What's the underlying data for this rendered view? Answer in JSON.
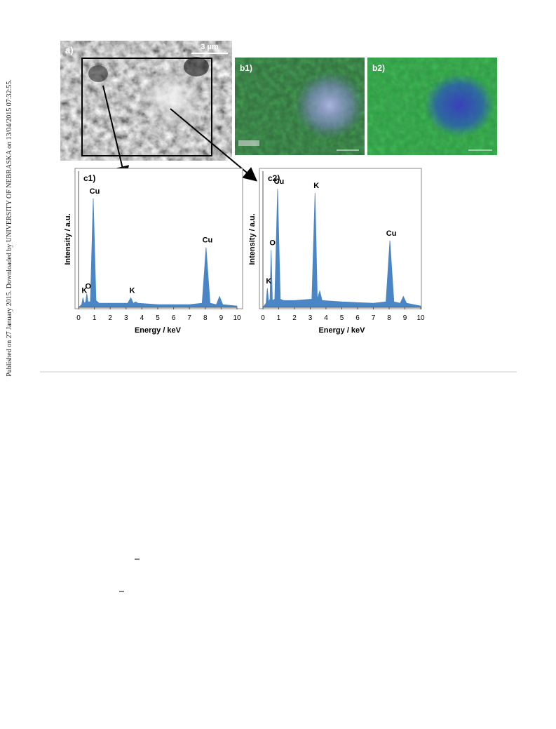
{
  "side_note": "Published on 27 January 2015. Downloaded by UNIVERSITY OF NEBRASKA on 13/04/2015 07:32:55.",
  "figure": {
    "panels": {
      "a": {
        "label": "a)",
        "scale_bar": "3 µm"
      },
      "b1": {
        "label": "b1)"
      },
      "b2": {
        "label": "b2)"
      }
    }
  },
  "chart_data": [
    {
      "type": "area",
      "title": "c1)",
      "x_label": "Energy / keV",
      "y_label": "Intensity / a.u.",
      "color": "#4a86c5",
      "x": [
        0,
        0.2,
        0.28,
        0.36,
        0.45,
        0.52,
        0.6,
        0.75,
        0.93,
        1.1,
        1.3,
        2.0,
        3.1,
        3.3,
        3.45,
        3.6,
        3.75,
        5.0,
        7.0,
        7.8,
        8.05,
        8.3,
        8.7,
        8.9,
        9.1,
        10
      ],
      "values": [
        0,
        2,
        7,
        3,
        4,
        10,
        4,
        4,
        80,
        5,
        3,
        3,
        3,
        7,
        3,
        4,
        3,
        2,
        2,
        3,
        44,
        3,
        2,
        8,
        2,
        1
      ],
      "xlim": [
        0,
        10
      ],
      "xticks": [
        0,
        1,
        2,
        3,
        4,
        5,
        6,
        7,
        8,
        9,
        10
      ],
      "ylim": [
        0,
        100
      ],
      "annotations": [
        {
          "text": "K",
          "x": 0.28
        },
        {
          "text": "O",
          "x": 0.52
        },
        {
          "text": "Cu",
          "x": 0.93
        },
        {
          "text": "K",
          "x": 3.3
        },
        {
          "text": "Cu",
          "x": 8.05
        }
      ]
    },
    {
      "type": "area",
      "title": "c2)",
      "x_label": "Energy / keV",
      "y_label": "Intensity / a.u.",
      "color": "#4a86c5",
      "x": [
        0,
        0.2,
        0.28,
        0.36,
        0.45,
        0.52,
        0.6,
        0.75,
        0.93,
        1.1,
        1.3,
        2.0,
        3.1,
        3.3,
        3.45,
        3.6,
        3.75,
        5.0,
        7.0,
        7.8,
        8.05,
        8.3,
        8.7,
        8.9,
        9.1,
        10
      ],
      "values": [
        0,
        3,
        14,
        4,
        6,
        42,
        5,
        6,
        87,
        6,
        5,
        5,
        6,
        84,
        6,
        12,
        5,
        4,
        3,
        4,
        49,
        4,
        3,
        8,
        3,
        1
      ],
      "xlim": [
        0,
        10
      ],
      "xticks": [
        0,
        1,
        2,
        3,
        4,
        5,
        6,
        7,
        8,
        9,
        10
      ],
      "ylim": [
        0,
        100
      ],
      "annotations": [
        {
          "text": "K",
          "x": 0.28
        },
        {
          "text": "O",
          "x": 0.52
        },
        {
          "text": "Cu",
          "x": 0.93
        },
        {
          "text": "K",
          "x": 3.3
        },
        {
          "text": "Cu",
          "x": 8.05
        }
      ]
    }
  ]
}
